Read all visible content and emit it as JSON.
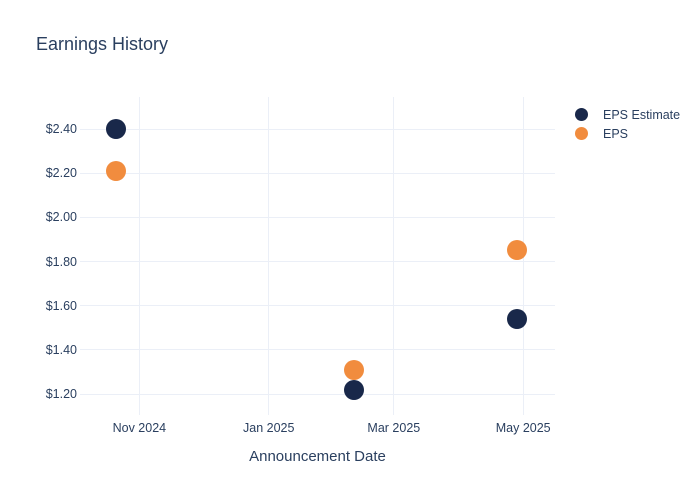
{
  "chart_data": {
    "type": "scatter",
    "title": "Earnings History",
    "xlabel": "Announcement Date",
    "x": [
      "2024-10-21",
      "2025-02-10",
      "2025-04-28"
    ],
    "series": [
      {
        "name": "EPS Estimate",
        "color": "#19284a",
        "values": [
          2.4,
          1.22,
          1.54
        ]
      },
      {
        "name": "EPS",
        "color": "#f18c3e",
        "values": [
          2.21,
          1.31,
          1.85
        ]
      }
    ],
    "y_axis": {
      "min": 1.105,
      "max": 2.545,
      "tick_values": [
        1.2,
        1.4,
        1.6,
        1.8,
        2.0,
        2.2,
        2.4
      ],
      "tick_labels": [
        "$1.20",
        "$1.40",
        "$1.60",
        "$1.80",
        "$2.00",
        "$2.20",
        "$2.40"
      ]
    },
    "x_axis": {
      "min": "2024-10-04",
      "max": "2025-05-16",
      "tick_dates": [
        "2024-11-01",
        "2025-01-01",
        "2025-03-01",
        "2025-05-01"
      ],
      "tick_labels": [
        "Nov 2024",
        "Jan 2025",
        "Mar 2025",
        "May 2025"
      ]
    },
    "grid": true,
    "legend_position": "right",
    "colors": {
      "background": "#ffffff",
      "grid": "#ebeff7",
      "text": "#2a3f5f"
    }
  }
}
